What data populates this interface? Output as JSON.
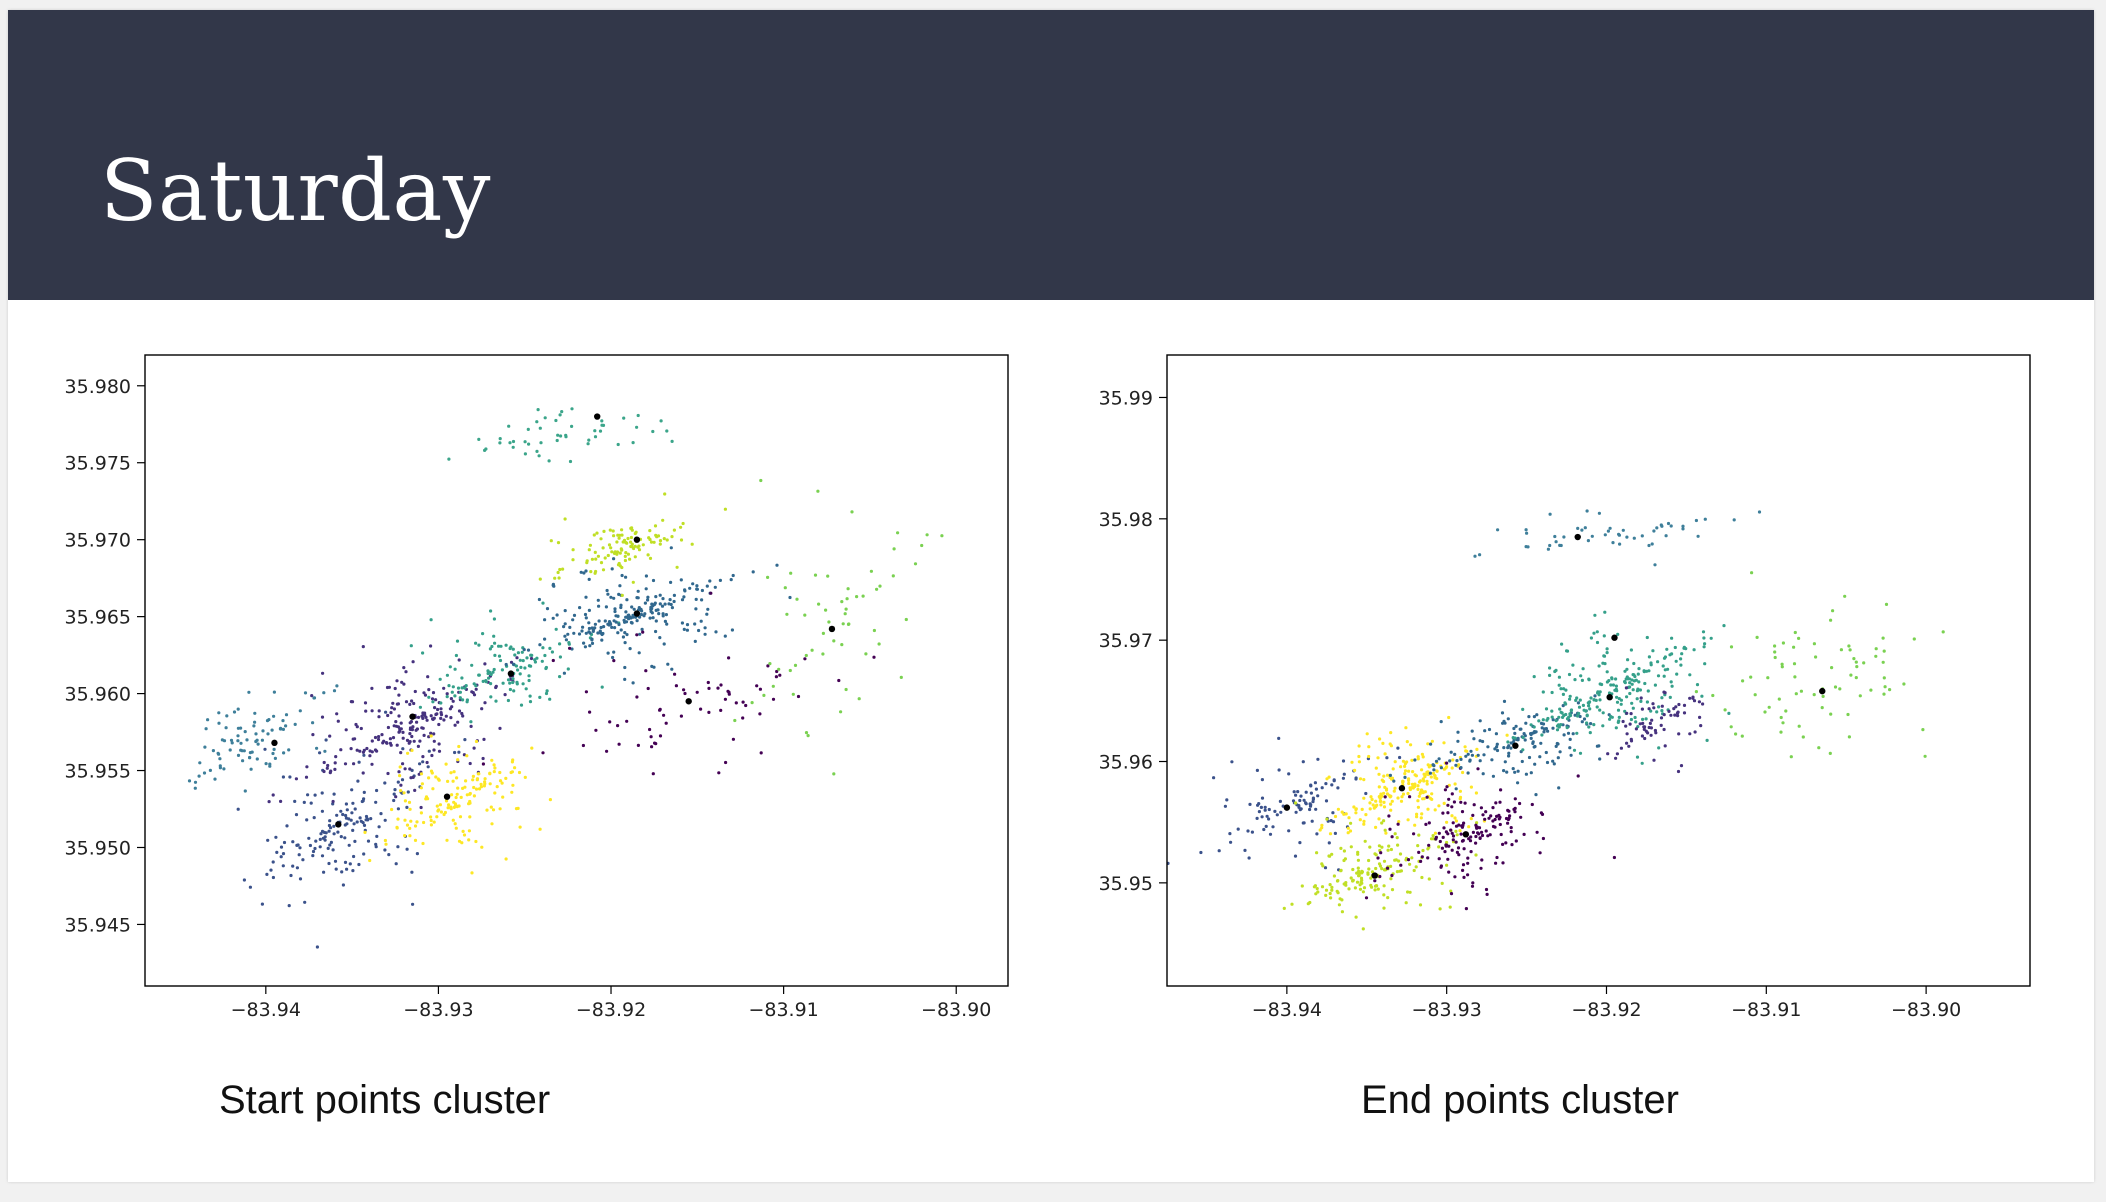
{
  "slide": {
    "title": "Saturday",
    "caption_left": "Start points cluster",
    "caption_right": "End points cluster",
    "colors": {
      "header": "#323749",
      "background": "#ffffff"
    }
  },
  "chart_data": [
    {
      "type": "scatter",
      "title": "",
      "xlabel": "",
      "ylabel": "",
      "xlim": [
        -83.947,
        -83.897
      ],
      "ylim": [
        35.941,
        35.982
      ],
      "grid": false,
      "x_ticks": [
        -83.94,
        -83.93,
        -83.92,
        -83.91,
        -83.9
      ],
      "x_tick_labels": [
        "−83.94",
        "−83.93",
        "−83.92",
        "−83.91",
        "−83.90"
      ],
      "y_ticks": [
        35.945,
        35.95,
        35.955,
        35.96,
        35.965,
        35.97,
        35.975,
        35.98
      ],
      "y_tick_labels": [
        "35.945",
        "35.950",
        "35.955",
        "35.960",
        "35.965",
        "35.970",
        "35.975",
        "35.980"
      ],
      "clusters": [
        {
          "color": "#3b528b",
          "center": [
            -83.9355,
            35.9515
          ],
          "spread": [
            0.0035,
            0.0035
          ],
          "count": 170
        },
        {
          "color": "#46327e",
          "center": [
            -83.9315,
            35.958
          ],
          "spread": [
            0.0035,
            0.003
          ],
          "count": 230
        },
        {
          "color": "#fde725",
          "center": [
            -83.929,
            35.953
          ],
          "spread": [
            0.0025,
            0.0025
          ],
          "count": 160
        },
        {
          "color": "#3e7f9a",
          "center": [
            -83.9405,
            35.957
          ],
          "spread": [
            0.0025,
            0.0025
          ],
          "count": 90
        },
        {
          "color": "#35a08a",
          "center": [
            -83.926,
            35.9615
          ],
          "spread": [
            0.003,
            0.0022
          ],
          "count": 130
        },
        {
          "color": "#31688e",
          "center": [
            -83.919,
            35.965
          ],
          "spread": [
            0.0035,
            0.0022
          ],
          "count": 230
        },
        {
          "color": "#c0df25",
          "center": [
            -83.919,
            35.9695
          ],
          "spread": [
            0.0025,
            0.0015
          ],
          "count": 110
        },
        {
          "color": "#440154",
          "center": [
            -83.9155,
            35.959
          ],
          "spread": [
            0.005,
            0.003
          ],
          "count": 70
        },
        {
          "color": "#7ad151",
          "center": [
            -83.9075,
            35.964
          ],
          "spread": [
            0.004,
            0.006
          ],
          "count": 60
        },
        {
          "color": "#3ba58a",
          "center": [
            -83.9225,
            35.977
          ],
          "spread": [
            0.004,
            0.0015
          ],
          "count": 50
        }
      ],
      "centroids": [
        [
          -83.9395,
          35.9568
        ],
        [
          -83.9315,
          35.9585
        ],
        [
          -83.9295,
          35.9533
        ],
        [
          -83.9258,
          35.9613
        ],
        [
          -83.9185,
          35.9652
        ],
        [
          -83.9185,
          35.97
        ],
        [
          -83.9155,
          35.9595
        ],
        [
          -83.9072,
          35.9642
        ],
        [
          -83.9208,
          35.978
        ],
        [
          -83.9358,
          35.9515
        ]
      ]
    },
    {
      "type": "scatter",
      "title": "",
      "xlabel": "",
      "ylabel": "",
      "xlim": [
        -83.9475,
        -83.8935
      ],
      "ylim": [
        35.9415,
        35.9935
      ],
      "grid": false,
      "x_ticks": [
        -83.94,
        -83.93,
        -83.92,
        -83.91,
        -83.9
      ],
      "x_tick_labels": [
        "−83.94",
        "−83.93",
        "−83.92",
        "−83.91",
        "−83.90"
      ],
      "y_ticks": [
        35.95,
        35.96,
        35.97,
        35.98,
        35.99
      ],
      "y_tick_labels": [
        "35.95",
        "35.96",
        "35.97",
        "35.98",
        "35.99"
      ],
      "clusters": [
        {
          "color": "#3b528b",
          "center": [
            -83.9395,
            35.9565
          ],
          "spread": [
            0.003,
            0.003
          ],
          "count": 110
        },
        {
          "color": "#fde725",
          "center": [
            -83.9325,
            35.958
          ],
          "spread": [
            0.003,
            0.003
          ],
          "count": 220
        },
        {
          "color": "#c0df25",
          "center": [
            -83.9345,
            35.951
          ],
          "spread": [
            0.003,
            0.0025
          ],
          "count": 170
        },
        {
          "color": "#440154",
          "center": [
            -83.9285,
            35.954
          ],
          "spread": [
            0.003,
            0.003
          ],
          "count": 170
        },
        {
          "color": "#31688e",
          "center": [
            -83.926,
            35.9615
          ],
          "spread": [
            0.004,
            0.0025
          ],
          "count": 160
        },
        {
          "color": "#35a08a",
          "center": [
            -83.9195,
            35.966
          ],
          "spread": [
            0.0035,
            0.0035
          ],
          "count": 250
        },
        {
          "color": "#46327e",
          "center": [
            -83.917,
            35.963
          ],
          "spread": [
            0.002,
            0.0025
          ],
          "count": 70
        },
        {
          "color": "#3e7f9a",
          "center": [
            -83.92,
            35.9785
          ],
          "spread": [
            0.0045,
            0.0015
          ],
          "count": 50
        },
        {
          "color": "#7ad151",
          "center": [
            -83.907,
            35.966
          ],
          "spread": [
            0.0045,
            0.0045
          ],
          "count": 80
        }
      ],
      "centroids": [
        [
          -83.94,
          35.9562
        ],
        [
          -83.9328,
          35.9578
        ],
        [
          -83.9345,
          35.9506
        ],
        [
          -83.9288,
          35.954
        ],
        [
          -83.9257,
          35.9613
        ],
        [
          -83.9198,
          35.9653
        ],
        [
          -83.9195,
          35.9702
        ],
        [
          -83.9218,
          35.9785
        ],
        [
          -83.9065,
          35.9658
        ]
      ]
    }
  ]
}
